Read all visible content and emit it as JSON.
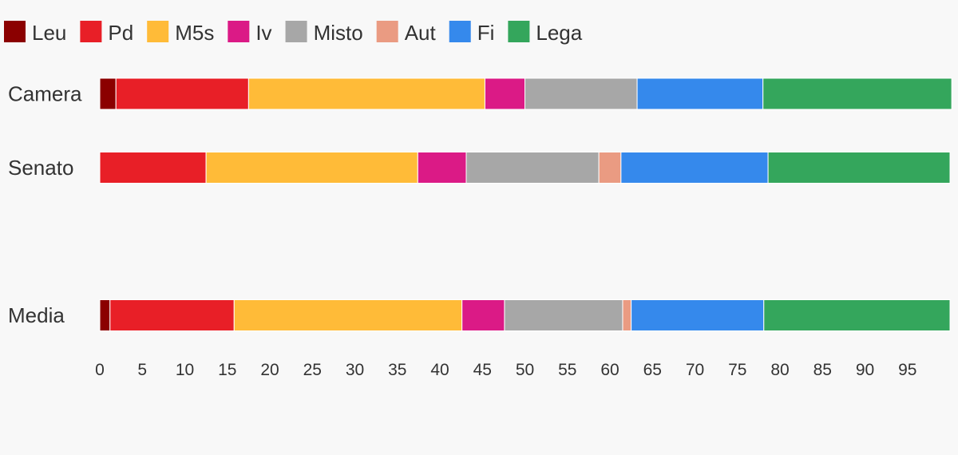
{
  "chart_data": {
    "type": "bar",
    "orientation": "horizontal",
    "stacked": true,
    "categories": [
      "Camera",
      "Senato",
      "",
      "Media"
    ],
    "series": [
      {
        "name": "Leu",
        "color": "#8b0000",
        "values": [
          1.9,
          0,
          null,
          1.2
        ]
      },
      {
        "name": "Pd",
        "color": "#e81f27",
        "values": [
          15.6,
          12.5,
          null,
          14.6
        ]
      },
      {
        "name": "M5s",
        "color": "#ffbb38",
        "values": [
          27.8,
          24.9,
          null,
          26.8
        ]
      },
      {
        "name": "Iv",
        "color": "#db1a86",
        "values": [
          4.7,
          5.7,
          null,
          5.0
        ]
      },
      {
        "name": "Misto",
        "color": "#a7a7a7",
        "values": [
          13.2,
          15.6,
          null,
          13.9
        ]
      },
      {
        "name": "Aut",
        "color": "#ea9b82",
        "values": [
          0,
          2.6,
          null,
          1.0
        ]
      },
      {
        "name": "Fi",
        "color": "#3589ec",
        "values": [
          14.8,
          17.3,
          null,
          15.6
        ]
      },
      {
        "name": "Lega",
        "color": "#34a65c",
        "values": [
          22.2,
          21.4,
          null,
          21.9
        ]
      }
    ],
    "xlim": [
      0,
      100
    ],
    "xticks": [
      0,
      5,
      10,
      15,
      20,
      25,
      30,
      35,
      40,
      45,
      50,
      55,
      60,
      65,
      70,
      75,
      80,
      85,
      90,
      95
    ],
    "grid": false,
    "legend": "top-left"
  }
}
